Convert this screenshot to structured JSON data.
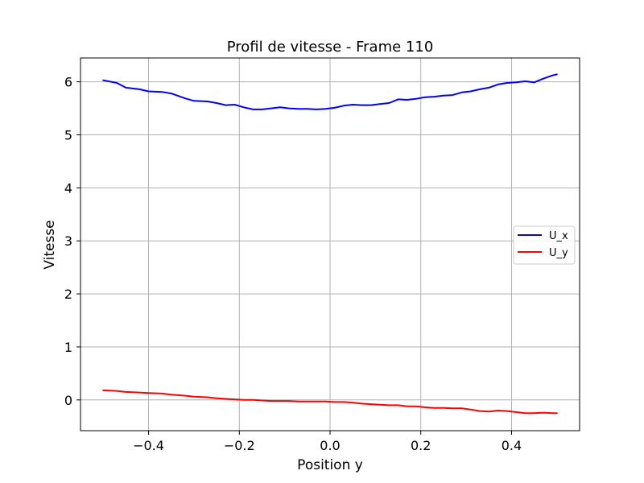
{
  "chart_data": {
    "type": "line",
    "title": "Profil de vitesse - Frame 110",
    "xlabel": "Position y",
    "ylabel": "Vitesse",
    "xlim": [
      -0.55,
      0.55
    ],
    "ylim": [
      -0.58,
      6.45
    ],
    "grid": true,
    "legend_position": "center-right",
    "x_ticks": [
      -0.4,
      -0.2,
      0.0,
      0.2,
      0.4
    ],
    "x_tick_labels": [
      "−0.4",
      "−0.2",
      "0.0",
      "0.2",
      "0.4"
    ],
    "y_ticks": [
      0,
      1,
      2,
      3,
      4,
      5,
      6
    ],
    "y_tick_labels": [
      "0",
      "1",
      "2",
      "3",
      "4",
      "5",
      "6"
    ],
    "series": [
      {
        "name": "U_x",
        "color": "#0000ff",
        "x": [
          -0.5,
          -0.47,
          -0.45,
          -0.42,
          -0.4,
          -0.37,
          -0.35,
          -0.32,
          -0.3,
          -0.27,
          -0.25,
          -0.23,
          -0.21,
          -0.19,
          -0.17,
          -0.15,
          -0.13,
          -0.11,
          -0.09,
          -0.07,
          -0.05,
          -0.03,
          -0.01,
          0.01,
          0.03,
          0.05,
          0.07,
          0.09,
          0.11,
          0.13,
          0.15,
          0.17,
          0.19,
          0.21,
          0.23,
          0.25,
          0.27,
          0.29,
          0.31,
          0.33,
          0.35,
          0.37,
          0.39,
          0.41,
          0.43,
          0.45,
          0.47,
          0.49,
          0.5
        ],
        "y": [
          6.03,
          5.98,
          5.89,
          5.86,
          5.82,
          5.81,
          5.78,
          5.69,
          5.64,
          5.63,
          5.6,
          5.56,
          5.57,
          5.52,
          5.48,
          5.48,
          5.5,
          5.52,
          5.5,
          5.49,
          5.49,
          5.48,
          5.49,
          5.51,
          5.55,
          5.57,
          5.56,
          5.56,
          5.58,
          5.6,
          5.67,
          5.66,
          5.68,
          5.71,
          5.72,
          5.74,
          5.75,
          5.8,
          5.82,
          5.86,
          5.89,
          5.95,
          5.98,
          5.99,
          6.01,
          5.99,
          6.06,
          6.12,
          6.14
        ]
      },
      {
        "name": "U_y",
        "color": "#ff0000",
        "x": [
          -0.5,
          -0.47,
          -0.45,
          -0.42,
          -0.4,
          -0.37,
          -0.35,
          -0.32,
          -0.3,
          -0.27,
          -0.25,
          -0.23,
          -0.21,
          -0.19,
          -0.17,
          -0.15,
          -0.13,
          -0.11,
          -0.09,
          -0.07,
          -0.05,
          -0.03,
          -0.01,
          0.01,
          0.03,
          0.05,
          0.07,
          0.09,
          0.11,
          0.13,
          0.15,
          0.17,
          0.19,
          0.21,
          0.23,
          0.25,
          0.27,
          0.29,
          0.31,
          0.33,
          0.35,
          0.37,
          0.39,
          0.41,
          0.43,
          0.45,
          0.47,
          0.49,
          0.5
        ],
        "y": [
          0.18,
          0.17,
          0.15,
          0.14,
          0.13,
          0.12,
          0.1,
          0.08,
          0.06,
          0.05,
          0.03,
          0.02,
          0.01,
          0.0,
          0.0,
          -0.01,
          -0.02,
          -0.02,
          -0.02,
          -0.03,
          -0.03,
          -0.03,
          -0.03,
          -0.04,
          -0.04,
          -0.05,
          -0.07,
          -0.08,
          -0.09,
          -0.1,
          -0.1,
          -0.12,
          -0.12,
          -0.14,
          -0.15,
          -0.15,
          -0.16,
          -0.16,
          -0.18,
          -0.21,
          -0.22,
          -0.2,
          -0.21,
          -0.23,
          -0.25,
          -0.25,
          -0.24,
          -0.25,
          -0.25
        ]
      }
    ]
  }
}
